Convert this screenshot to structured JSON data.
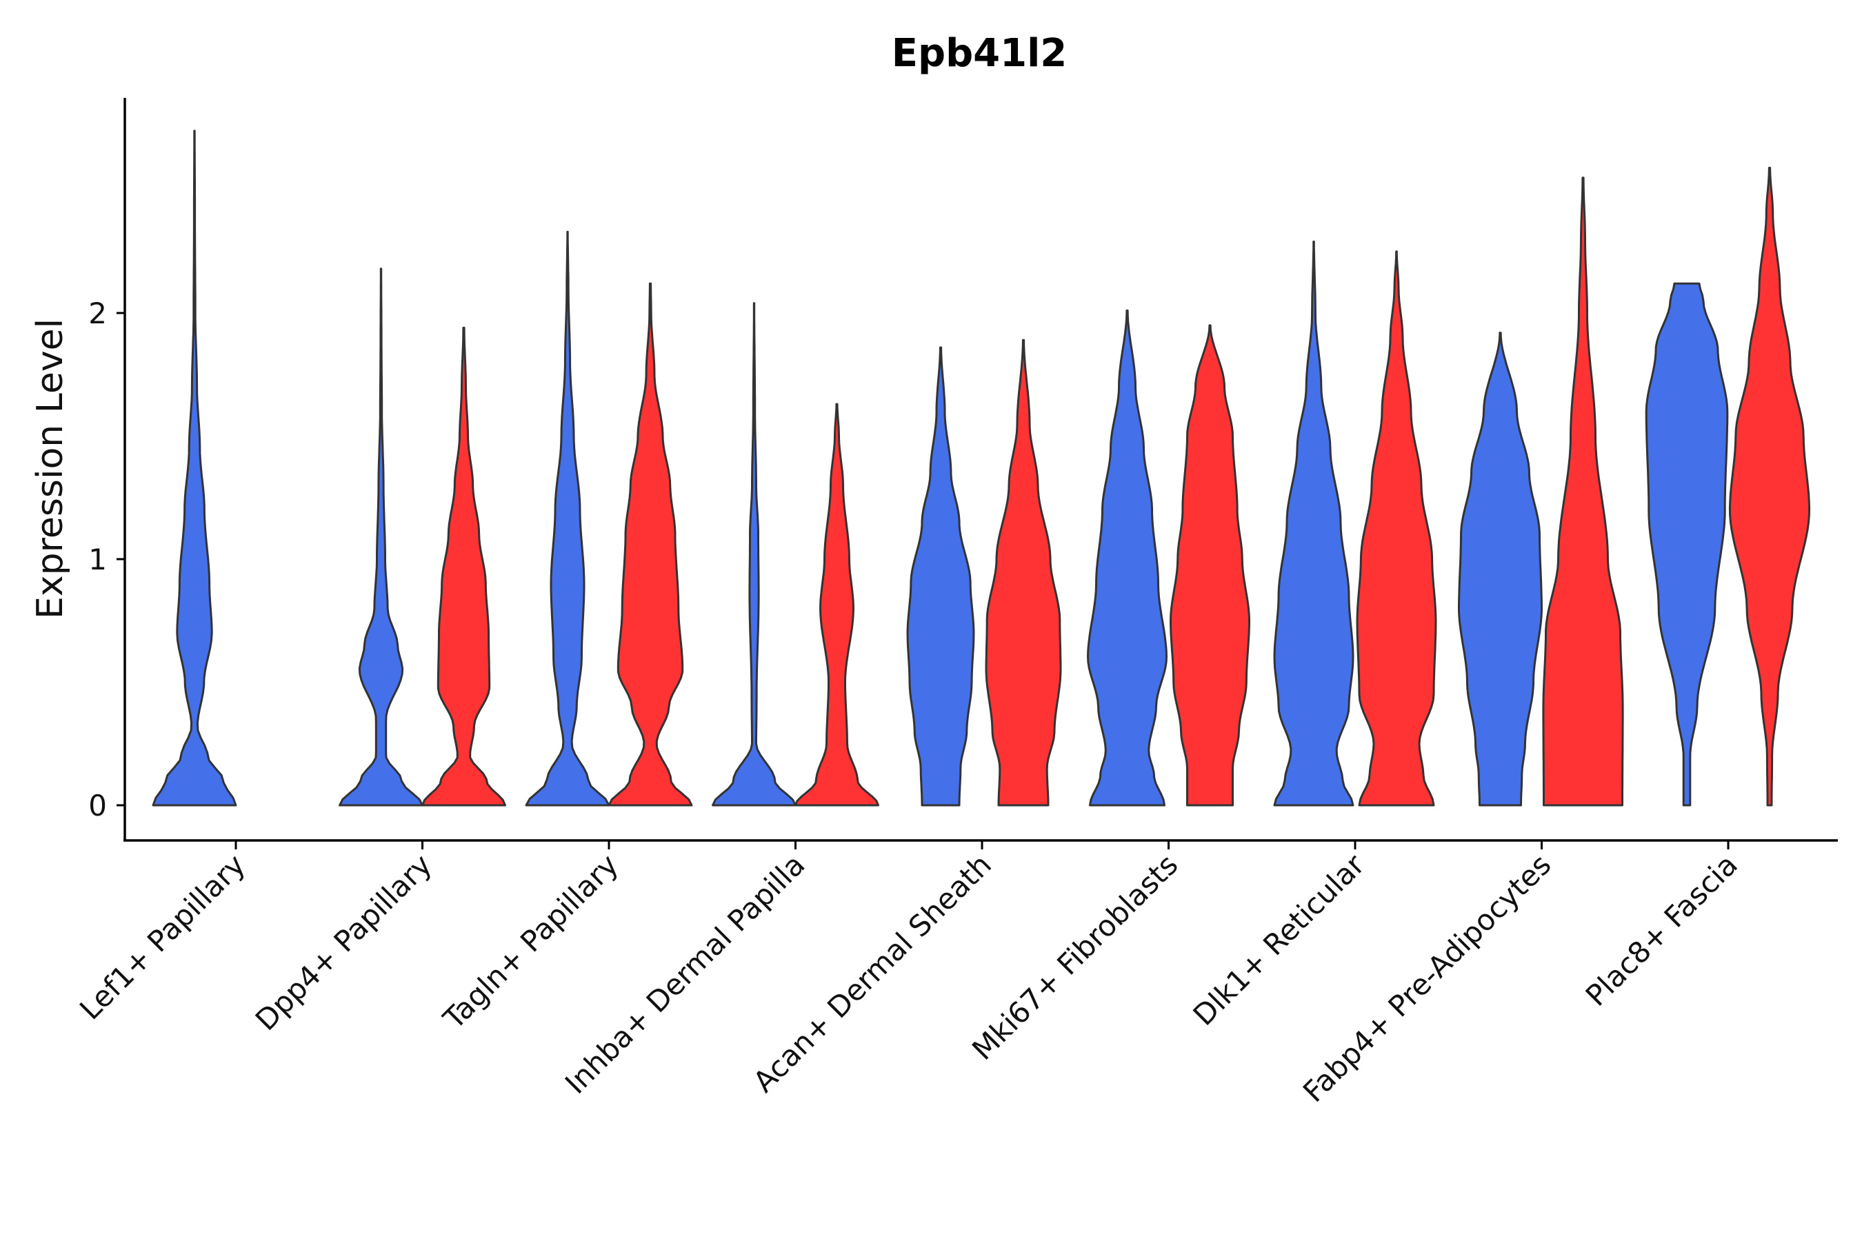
{
  "chart_data": {
    "type": "violin",
    "title": "Epb41l2",
    "xlabel": "",
    "ylabel": "Expression Level",
    "ylim": [
      -0.14,
      2.9
    ],
    "yticks": [
      0,
      1,
      2
    ],
    "legend": "none",
    "colors": {
      "group_a": "#4470EA",
      "group_b": "#FF3333"
    },
    "categories": [
      "Lef1+ Papillary",
      "Dpp4+ Papillary",
      "Tagln+ Papillary",
      "Inhba+ Dermal Papilla",
      "Acan+ Dermal Sheath",
      "Mki67+ Fibroblasts",
      "Dlk1+ Reticular",
      "Fabp4+ Pre-Adipocytes",
      "Plac8+ Fascia"
    ],
    "violins": [
      {
        "category": 0,
        "group": "a",
        "max": 2.74,
        "profile": [
          [
            0,
            1.0
          ],
          [
            0.1,
            0.7
          ],
          [
            0.2,
            0.32
          ],
          [
            0.32,
            0.07
          ],
          [
            0.5,
            0.23
          ],
          [
            0.7,
            0.42
          ],
          [
            0.9,
            0.36
          ],
          [
            1.2,
            0.24
          ],
          [
            1.45,
            0.13
          ],
          [
            1.7,
            0.06
          ],
          [
            2.0,
            0.02
          ],
          [
            2.4,
            0.01
          ],
          [
            2.74,
            0.003
          ]
        ]
      },
      {
        "category": 1,
        "group": "a",
        "max": 2.18,
        "profile": [
          [
            0,
            1.0
          ],
          [
            0.1,
            0.5
          ],
          [
            0.2,
            0.12
          ],
          [
            0.35,
            0.12
          ],
          [
            0.55,
            0.52
          ],
          [
            0.65,
            0.4
          ],
          [
            0.8,
            0.16
          ],
          [
            1.0,
            0.1
          ],
          [
            1.3,
            0.06
          ],
          [
            1.6,
            0.02
          ],
          [
            1.9,
            0.01
          ],
          [
            2.18,
            0.003
          ]
        ]
      },
      {
        "category": 1,
        "group": "b",
        "max": 1.94,
        "profile": [
          [
            0,
            1.0
          ],
          [
            0.1,
            0.55
          ],
          [
            0.2,
            0.15
          ],
          [
            0.32,
            0.25
          ],
          [
            0.48,
            0.62
          ],
          [
            0.7,
            0.6
          ],
          [
            0.9,
            0.53
          ],
          [
            1.1,
            0.37
          ],
          [
            1.3,
            0.22
          ],
          [
            1.5,
            0.1
          ],
          [
            1.7,
            0.05
          ],
          [
            1.94,
            0.01
          ]
        ]
      },
      {
        "category": 2,
        "group": "a",
        "max": 2.33,
        "profile": [
          [
            0,
            1.0
          ],
          [
            0.1,
            0.5
          ],
          [
            0.25,
            0.1
          ],
          [
            0.4,
            0.22
          ],
          [
            0.6,
            0.34
          ],
          [
            0.9,
            0.4
          ],
          [
            1.2,
            0.3
          ],
          [
            1.5,
            0.15
          ],
          [
            1.8,
            0.06
          ],
          [
            2.1,
            0.02
          ],
          [
            2.33,
            0.003
          ]
        ]
      },
      {
        "category": 2,
        "group": "b",
        "max": 2.12,
        "profile": [
          [
            0,
            1.0
          ],
          [
            0.1,
            0.5
          ],
          [
            0.25,
            0.15
          ],
          [
            0.4,
            0.45
          ],
          [
            0.55,
            0.78
          ],
          [
            0.8,
            0.68
          ],
          [
            1.1,
            0.6
          ],
          [
            1.3,
            0.48
          ],
          [
            1.5,
            0.3
          ],
          [
            1.75,
            0.1
          ],
          [
            2.0,
            0.02
          ],
          [
            2.12,
            0.01
          ]
        ]
      },
      {
        "category": 3,
        "group": "a",
        "max": 2.04,
        "profile": [
          [
            0,
            1.0
          ],
          [
            0.1,
            0.5
          ],
          [
            0.25,
            0.05
          ],
          [
            0.45,
            0.06
          ],
          [
            0.85,
            0.11
          ],
          [
            1.1,
            0.1
          ],
          [
            1.3,
            0.05
          ],
          [
            1.6,
            0.02
          ],
          [
            2.04,
            0.003
          ]
        ]
      },
      {
        "category": 3,
        "group": "b",
        "max": 1.63,
        "profile": [
          [
            0,
            1.0
          ],
          [
            0.1,
            0.5
          ],
          [
            0.25,
            0.25
          ],
          [
            0.5,
            0.2
          ],
          [
            0.8,
            0.4
          ],
          [
            1.0,
            0.3
          ],
          [
            1.3,
            0.15
          ],
          [
            1.5,
            0.05
          ],
          [
            1.63,
            0.01
          ]
        ]
      },
      {
        "category": 4,
        "group": "a",
        "max": 1.86,
        "profile": [
          [
            0,
            0.45
          ],
          [
            0.15,
            0.48
          ],
          [
            0.3,
            0.63
          ],
          [
            0.5,
            0.75
          ],
          [
            0.7,
            0.8
          ],
          [
            0.9,
            0.72
          ],
          [
            1.15,
            0.45
          ],
          [
            1.35,
            0.25
          ],
          [
            1.6,
            0.1
          ],
          [
            1.86,
            0.01
          ]
        ]
      },
      {
        "category": 4,
        "group": "b",
        "max": 1.89,
        "profile": [
          [
            0,
            0.6
          ],
          [
            0.15,
            0.57
          ],
          [
            0.3,
            0.75
          ],
          [
            0.55,
            0.9
          ],
          [
            0.75,
            0.88
          ],
          [
            1.0,
            0.65
          ],
          [
            1.3,
            0.35
          ],
          [
            1.55,
            0.15
          ],
          [
            1.89,
            0.01
          ]
        ]
      },
      {
        "category": 5,
        "group": "a",
        "max": 2.01,
        "profile": [
          [
            0,
            0.9
          ],
          [
            0.12,
            0.65
          ],
          [
            0.22,
            0.52
          ],
          [
            0.4,
            0.7
          ],
          [
            0.6,
            0.95
          ],
          [
            0.9,
            0.75
          ],
          [
            1.2,
            0.6
          ],
          [
            1.45,
            0.4
          ],
          [
            1.7,
            0.2
          ],
          [
            2.01,
            0.01
          ]
        ]
      },
      {
        "category": 5,
        "group": "b",
        "max": 1.95,
        "profile": [
          [
            0,
            0.55
          ],
          [
            0.15,
            0.55
          ],
          [
            0.3,
            0.7
          ],
          [
            0.5,
            0.88
          ],
          [
            0.75,
            0.95
          ],
          [
            1.0,
            0.78
          ],
          [
            1.2,
            0.66
          ],
          [
            1.5,
            0.55
          ],
          [
            1.7,
            0.35
          ],
          [
            1.95,
            0.01
          ]
        ]
      },
      {
        "category": 6,
        "group": "a",
        "max": 2.29,
        "profile": [
          [
            0,
            0.95
          ],
          [
            0.1,
            0.7
          ],
          [
            0.22,
            0.55
          ],
          [
            0.4,
            0.85
          ],
          [
            0.6,
            0.95
          ],
          [
            0.85,
            0.85
          ],
          [
            1.15,
            0.65
          ],
          [
            1.45,
            0.4
          ],
          [
            1.7,
            0.18
          ],
          [
            2.0,
            0.04
          ],
          [
            2.29,
            0.005
          ]
        ]
      },
      {
        "category": 6,
        "group": "b",
        "max": 2.25,
        "profile": [
          [
            0,
            0.9
          ],
          [
            0.12,
            0.65
          ],
          [
            0.25,
            0.55
          ],
          [
            0.45,
            0.9
          ],
          [
            0.75,
            0.95
          ],
          [
            1.0,
            0.86
          ],
          [
            1.3,
            0.6
          ],
          [
            1.6,
            0.35
          ],
          [
            1.9,
            0.15
          ],
          [
            2.1,
            0.05
          ],
          [
            2.25,
            0.005
          ]
        ]
      },
      {
        "category": 7,
        "group": "a",
        "max": 1.92,
        "profile": [
          [
            0,
            0.5
          ],
          [
            0.12,
            0.52
          ],
          [
            0.25,
            0.6
          ],
          [
            0.5,
            0.8
          ],
          [
            0.8,
            1.0
          ],
          [
            1.1,
            0.95
          ],
          [
            1.35,
            0.7
          ],
          [
            1.6,
            0.4
          ],
          [
            1.92,
            0.01
          ]
        ]
      },
      {
        "category": 7,
        "group": "b",
        "max": 2.55,
        "profile": [
          [
            0,
            0.95
          ],
          [
            0.4,
            0.96
          ],
          [
            0.7,
            0.9
          ],
          [
            1.0,
            0.6
          ],
          [
            1.5,
            0.3
          ],
          [
            2.0,
            0.1
          ],
          [
            2.3,
            0.05
          ],
          [
            2.55,
            0.01
          ]
        ]
      },
      {
        "category": 8,
        "group": "a",
        "max": 2.12,
        "profile": [
          [
            0,
            0.08
          ],
          [
            0.2,
            0.08
          ],
          [
            0.4,
            0.25
          ],
          [
            0.8,
            0.68
          ],
          [
            1.2,
            0.92
          ],
          [
            1.6,
            0.98
          ],
          [
            1.85,
            0.75
          ],
          [
            2.05,
            0.4
          ],
          [
            2.12,
            0.3
          ]
        ]
      },
      {
        "category": 8,
        "group": "b",
        "max": 2.59,
        "profile": [
          [
            0,
            0.05
          ],
          [
            0.2,
            0.06
          ],
          [
            0.45,
            0.2
          ],
          [
            0.8,
            0.55
          ],
          [
            1.2,
            0.96
          ],
          [
            1.5,
            0.82
          ],
          [
            1.8,
            0.5
          ],
          [
            2.1,
            0.25
          ],
          [
            2.4,
            0.08
          ],
          [
            2.59,
            0.01
          ]
        ]
      }
    ]
  }
}
